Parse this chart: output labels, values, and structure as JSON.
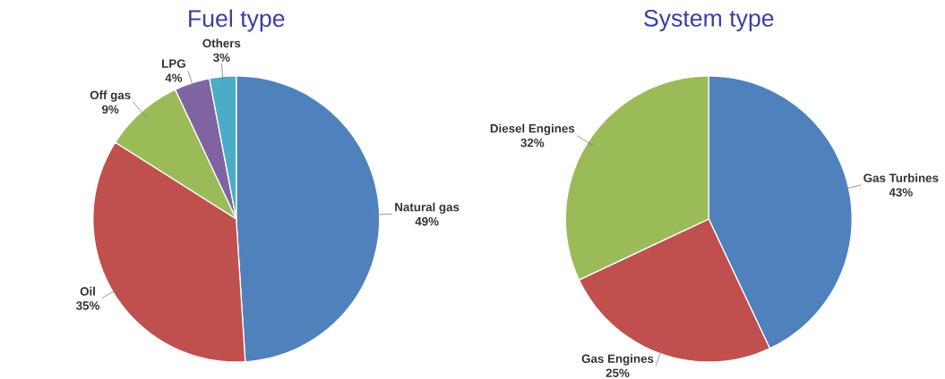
{
  "chart_data": [
    {
      "type": "pie",
      "title": "Fuel type",
      "categories": [
        "Natural gas",
        "Oil",
        "Off gas",
        "LPG",
        "Others"
      ],
      "values": [
        49,
        35,
        9,
        4,
        3
      ],
      "colors": [
        "#4f81bd",
        "#c0504d",
        "#9bbb59",
        "#8064a2",
        "#4bacc6"
      ],
      "value_labels": [
        "49%",
        "35%",
        "9%",
        "4%",
        "3%"
      ]
    },
    {
      "type": "pie",
      "title": "System type",
      "categories": [
        "Gas Turbines",
        "Gas Engines",
        "Diesel Engines"
      ],
      "values": [
        43,
        25,
        32
      ],
      "colors": [
        "#4f81bd",
        "#c0504d",
        "#9bbb59"
      ],
      "value_labels": [
        "43%",
        "25%",
        "32%"
      ]
    }
  ]
}
